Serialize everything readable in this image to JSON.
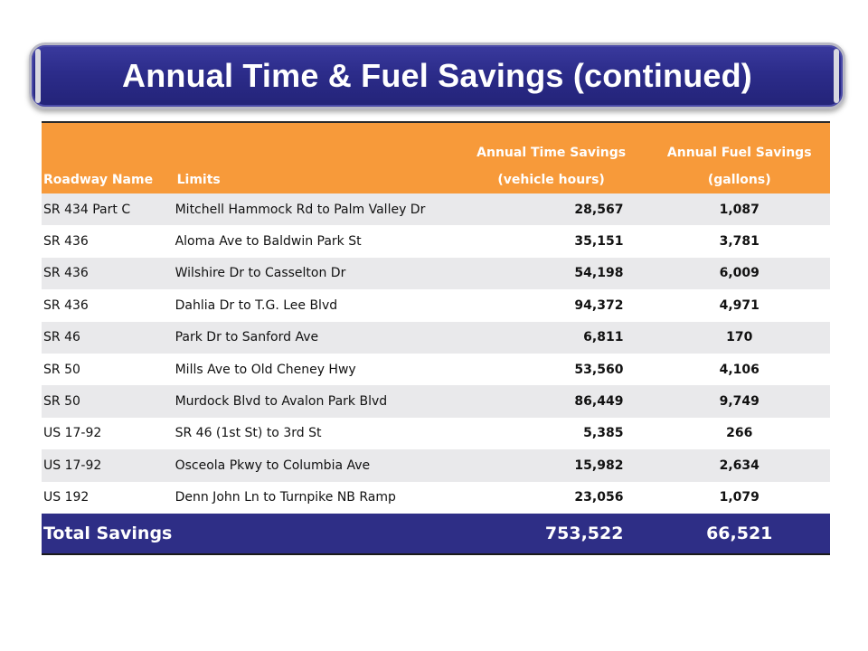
{
  "title": "Annual Time & Fuel Savings (continued)",
  "table": {
    "headers": {
      "roadway_name": "Roadway Name",
      "limits": "Limits",
      "time_line1": "Annual Time Savings",
      "time_line2": "(vehicle hours)",
      "fuel_line1": "Annual Fuel Savings",
      "fuel_line2": "(gallons)"
    },
    "rows": [
      {
        "name": "SR 434 Part C",
        "limits": "Mitchell Hammock Rd to Palm Valley Dr",
        "time": "28,567",
        "fuel": "1,087"
      },
      {
        "name": "SR 436",
        "limits": "Aloma Ave to Baldwin Park St",
        "time": "35,151",
        "fuel": "3,781"
      },
      {
        "name": "SR 436",
        "limits": "Wilshire Dr to Casselton Dr",
        "time": "54,198",
        "fuel": "6,009"
      },
      {
        "name": "SR 436",
        "limits": "Dahlia Dr to T.G. Lee Blvd",
        "time": "94,372",
        "fuel": "4,971"
      },
      {
        "name": "SR 46",
        "limits": "Park Dr to Sanford Ave",
        "time": "6,811",
        "fuel": "170"
      },
      {
        "name": "SR 50",
        "limits": "Mills Ave to Old Cheney Hwy",
        "time": "53,560",
        "fuel": "4,106"
      },
      {
        "name": "SR 50",
        "limits": "Murdock Blvd to Avalon Park Blvd",
        "time": "86,449",
        "fuel": "9,749"
      },
      {
        "name": "US 17-92",
        "limits": "SR 46 (1st St) to 3rd St",
        "time": "5,385",
        "fuel": "266"
      },
      {
        "name": "US 17-92",
        "limits": "Osceola Pkwy to Columbia Ave",
        "time": "15,982",
        "fuel": "2,634"
      },
      {
        "name": "US 192",
        "limits": "Denn John Ln to Turnpike NB Ramp",
        "time": "23,056",
        "fuel": "1,079"
      }
    ],
    "total": {
      "label": "Total Savings",
      "time": "753,522",
      "fuel": "66,521"
    }
  },
  "colors": {
    "banner": "#2c2c8a",
    "header": "#f79a3a",
    "stripe": "#e9e9eb",
    "total": "#2e2e86"
  }
}
